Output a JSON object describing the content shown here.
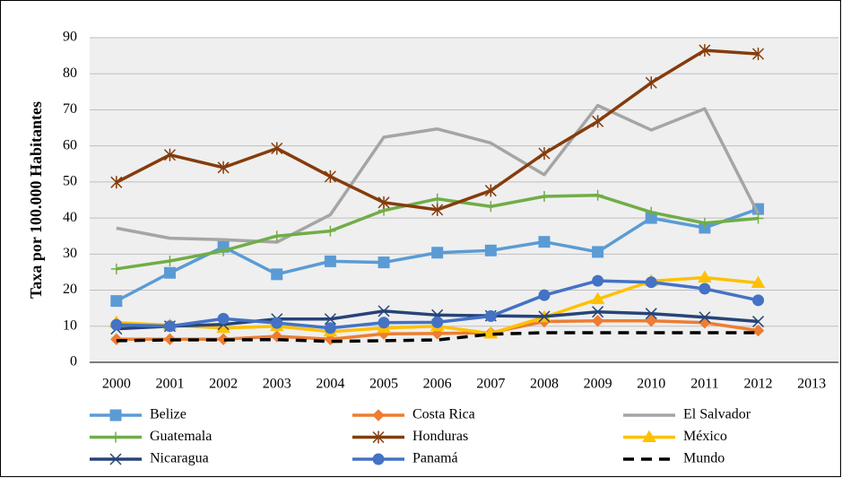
{
  "chart_data": {
    "type": "line",
    "y_label": "Taxa por 100.000 Habitantes",
    "categories": [
      "2000",
      "2001",
      "2002",
      "2003",
      "2004",
      "2005",
      "2006",
      "2007",
      "2008",
      "2009",
      "2010",
      "2011",
      "2012",
      "2013"
    ],
    "ylim": [
      0,
      90
    ],
    "yticks": [
      0,
      10,
      20,
      30,
      40,
      50,
      60,
      70,
      80,
      90
    ],
    "grid": true,
    "legend": "bottom",
    "series": [
      {
        "name": "Belize",
        "color": "#5b9bd5",
        "marker": "square",
        "values": [
          17,
          24.8,
          32,
          24.4,
          28,
          27.7,
          30.4,
          31,
          33.4,
          30.6,
          40,
          37.3,
          42.5,
          null
        ]
      },
      {
        "name": "Costa Rica",
        "color": "#ed7d31",
        "marker": "diamond",
        "values": [
          6.4,
          6.4,
          6.4,
          7.2,
          6.4,
          7.9,
          8,
          8.2,
          11.3,
          11.5,
          11.5,
          11,
          8.8,
          null
        ]
      },
      {
        "name": "El Salvador",
        "color": "#a5a5a5",
        "marker": "none",
        "values": [
          37.2,
          34.4,
          34,
          33.3,
          40.9,
          62.4,
          64.7,
          60.8,
          52,
          71.2,
          64.4,
          70.3,
          41.2,
          null
        ]
      },
      {
        "name": "Guatemala",
        "color": "#70ad47",
        "marker": "plus",
        "values": [
          25.9,
          28.1,
          30.9,
          35,
          36.4,
          42.1,
          45.3,
          43.2,
          46,
          46.3,
          41.6,
          38.6,
          39.9,
          null
        ]
      },
      {
        "name": "Honduras",
        "color": "#843c0c",
        "marker": "asterisk",
        "values": [
          49.9,
          57.5,
          54,
          59.3,
          51.5,
          44.3,
          42.3,
          47.6,
          57.9,
          66.8,
          77.5,
          86.5,
          85.5,
          null
        ]
      },
      {
        "name": "México",
        "color": "#ffc000",
        "marker": "triangle",
        "values": [
          11,
          10.3,
          9.5,
          10,
          8.5,
          9.5,
          10,
          8,
          12.5,
          17.5,
          22.5,
          23.5,
          22,
          null
        ]
      },
      {
        "name": "Nicaragua",
        "color": "#264478",
        "marker": "x",
        "values": [
          9.3,
          10,
          10.5,
          12,
          12,
          14.2,
          13.1,
          12.9,
          12.7,
          14,
          13.5,
          12.5,
          11.3,
          null
        ]
      },
      {
        "name": "Panamá",
        "color": "#4472c4",
        "marker": "circle",
        "values": [
          10.4,
          10,
          12.1,
          10.9,
          9.5,
          11,
          11.1,
          12.8,
          18.6,
          22.6,
          22.2,
          20.4,
          17.2,
          null
        ]
      },
      {
        "name": "Mundo",
        "color": "#000000",
        "marker": "none",
        "dashed": true,
        "values": [
          6,
          6.2,
          6.2,
          6.3,
          5.8,
          6,
          6.2,
          7.8,
          8.2,
          8.2,
          8.2,
          8.2,
          8.2,
          null
        ]
      }
    ]
  }
}
